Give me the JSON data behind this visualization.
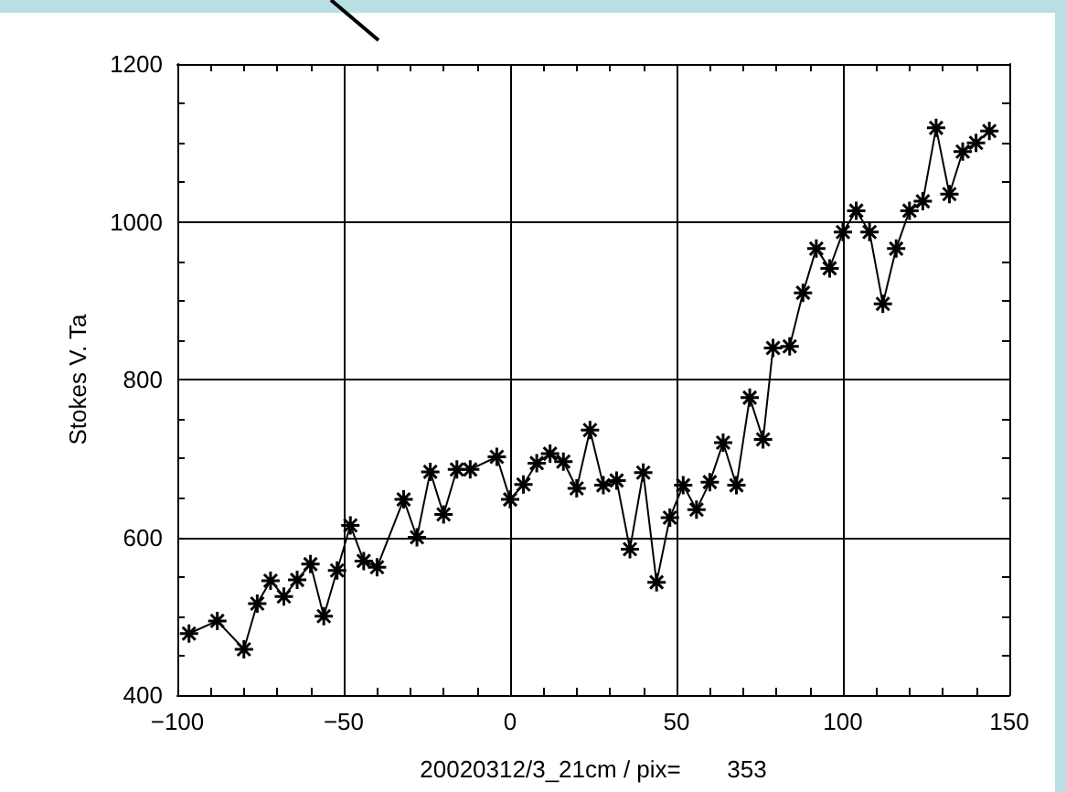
{
  "chart_data": {
    "type": "line",
    "xlabel": "20020312/3_21cm / pix=       353",
    "ylabel": "Stokes V. Ta",
    "xlim": [
      -100,
      150
    ],
    "xticks": [
      -100,
      -50,
      0,
      50,
      100,
      150
    ],
    "ylim": [
      400,
      1200
    ],
    "yticks": [
      400,
      600,
      800,
      1000,
      1200
    ],
    "grid": true,
    "marker": "cross",
    "line_style": "solid",
    "series": [
      {
        "color": "#000000",
        "x": [
          -96.5,
          -88,
          -80,
          -76,
          -72,
          -68,
          -64,
          -60,
          -56,
          -52,
          -48,
          -44,
          -40,
          -32,
          -28,
          -24,
          -20,
          -16,
          -12,
          -4,
          0,
          4,
          8,
          12,
          16,
          20,
          24,
          28,
          32,
          36,
          40,
          44,
          48,
          52,
          56,
          60,
          64,
          68,
          72,
          76,
          79,
          84,
          88,
          92,
          96,
          100,
          104,
          108,
          112,
          116,
          120,
          124,
          128,
          132,
          136,
          140,
          144
        ],
        "values": [
          478,
          494,
          458,
          516,
          545,
          525,
          546,
          566,
          500,
          558,
          615,
          570,
          562,
          648,
          600,
          683,
          629,
          686,
          686,
          702,
          648,
          667,
          694,
          706,
          696,
          662,
          736,
          666,
          672,
          585,
          682,
          543,
          625,
          666,
          635,
          670,
          720,
          666,
          777,
          724,
          840,
          842,
          910,
          966,
          941,
          987,
          1014,
          987,
          896,
          966,
          1014,
          1026,
          1119,
          1035,
          1089,
          1100,
          1115
        ]
      }
    ]
  }
}
